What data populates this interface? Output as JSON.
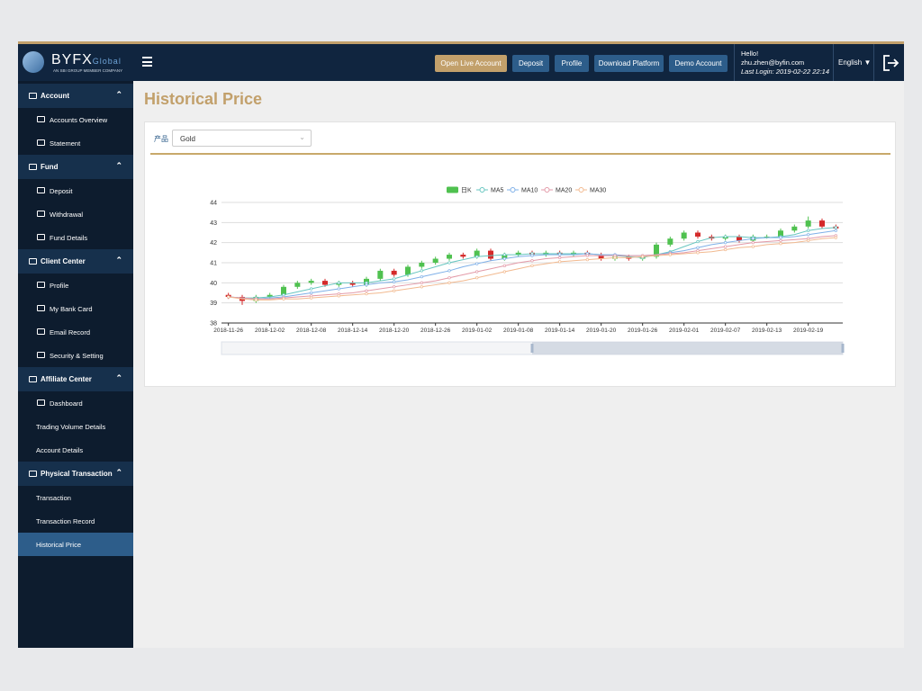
{
  "header": {
    "logo": "BYFX",
    "logo_suffix": "Global",
    "tagline": "AN SBI GROUP MEMBER COMPANY",
    "buttons": [
      "Open Live Account",
      "Deposit",
      "Profile",
      "Download Platform",
      "Demo Account"
    ],
    "greeting": "Hello!",
    "email": "zhu.zhen@byfin.com",
    "last_login": "Last Login: 2019-02-22 22:14",
    "language": "English"
  },
  "sidebar": {
    "sections": [
      {
        "title": "Account",
        "items": [
          "Accounts Overview",
          "Statement"
        ]
      },
      {
        "title": "Fund",
        "items": [
          "Deposit",
          "Withdrawal",
          "Fund Details"
        ]
      },
      {
        "title": "Client Center",
        "items": [
          "Profile",
          "My Bank Card",
          "Email Record",
          "Security & Setting"
        ]
      },
      {
        "title": "Affiliate Center",
        "items": [
          "Dashboard",
          "Trading Volume Details",
          "Account Details"
        ]
      },
      {
        "title": "Physical Transaction",
        "items": [
          "Transaction",
          "Transaction Record",
          "Historical Price"
        ]
      }
    ],
    "active_item": {
      "section": 4,
      "item": 2
    }
  },
  "page": {
    "title": "Historical Price",
    "filter_label": "产品",
    "filter_value": "Gold"
  },
  "chart_data": {
    "type": "candlestick",
    "categories": [
      "2018-11-26",
      null,
      null,
      "2018-12-02",
      null,
      null,
      "2018-12-08",
      null,
      null,
      "2018-12-14",
      null,
      null,
      "2018-12-20",
      null,
      null,
      "2018-12-26",
      null,
      null,
      "2019-01-02",
      null,
      null,
      "2019-01-08",
      null,
      null,
      "2019-01-14",
      null,
      null,
      "2019-01-20",
      null,
      null,
      "2019-01-26",
      null,
      null,
      "2019-02-01",
      null,
      null,
      "2019-02-07",
      null,
      null,
      "2019-02-13",
      null,
      null,
      "2019-02-19",
      null,
      null
    ],
    "candles": {
      "name": "日K",
      "up_color": "#4fc14f",
      "down_color": "#d42a2a",
      "open": [
        39.4,
        39.3,
        39.1,
        39.3,
        39.4,
        39.8,
        40.0,
        40.1,
        39.9,
        40.0,
        39.9,
        40.2,
        40.6,
        40.4,
        40.8,
        41.0,
        41.2,
        41.4,
        41.3,
        41.6,
        41.2,
        41.4,
        41.5,
        41.4,
        41.5,
        41.4,
        41.5,
        41.4,
        41.2,
        41.3,
        41.2,
        41.3,
        41.9,
        42.2,
        42.5,
        42.3,
        42.2,
        42.3,
        42.1,
        42.3,
        42.3,
        42.6,
        42.8,
        43.1,
        42.8
      ],
      "close": [
        39.3,
        39.1,
        39.3,
        39.4,
        39.8,
        40.0,
        40.1,
        39.9,
        40.0,
        39.9,
        40.2,
        40.6,
        40.4,
        40.8,
        41.0,
        41.2,
        41.4,
        41.3,
        41.6,
        41.2,
        41.4,
        41.5,
        41.4,
        41.5,
        41.4,
        41.5,
        41.4,
        41.2,
        41.3,
        41.2,
        41.3,
        41.9,
        42.2,
        42.5,
        42.3,
        42.2,
        42.3,
        42.1,
        42.3,
        42.3,
        42.6,
        42.8,
        43.1,
        42.8,
        42.7
      ],
      "low": [
        39.2,
        38.9,
        39.0,
        39.2,
        39.3,
        39.7,
        39.9,
        39.8,
        39.8,
        39.8,
        39.8,
        40.1,
        40.3,
        40.3,
        40.7,
        40.9,
        41.1,
        41.2,
        41.2,
        41.1,
        41.1,
        41.3,
        41.3,
        41.3,
        41.3,
        41.3,
        41.3,
        41.1,
        41.1,
        41.1,
        41.1,
        41.2,
        41.8,
        42.1,
        42.2,
        42.1,
        42.1,
        42.0,
        42.0,
        42.2,
        42.2,
        42.5,
        42.7,
        42.7,
        42.6
      ],
      "high": [
        39.5,
        39.4,
        39.4,
        39.5,
        39.9,
        40.1,
        40.2,
        40.2,
        40.1,
        40.1,
        40.3,
        40.7,
        40.7,
        40.9,
        41.1,
        41.3,
        41.5,
        41.5,
        41.7,
        41.7,
        41.5,
        41.6,
        41.6,
        41.6,
        41.6,
        41.6,
        41.6,
        41.5,
        41.4,
        41.4,
        41.4,
        42.0,
        42.3,
        42.6,
        42.6,
        42.4,
        42.4,
        42.4,
        42.4,
        42.4,
        42.7,
        42.9,
        43.3,
        43.2,
        42.9
      ]
    },
    "series": [
      {
        "name": "MA5",
        "color": "#67c6c0",
        "values": [
          39.3,
          39.25,
          39.25,
          39.3,
          39.4,
          39.55,
          39.7,
          39.85,
          40.0,
          40.0,
          40.0,
          40.1,
          40.2,
          40.4,
          40.6,
          40.8,
          41.0,
          41.15,
          41.3,
          41.35,
          41.4,
          41.4,
          41.45,
          41.45,
          41.45,
          41.45,
          41.45,
          41.4,
          41.35,
          41.3,
          41.25,
          41.4,
          41.55,
          41.8,
          42.05,
          42.25,
          42.3,
          42.3,
          42.25,
          42.25,
          42.3,
          42.4,
          42.6,
          42.7,
          42.75
        ]
      },
      {
        "name": "MA10",
        "color": "#7fb0e8",
        "values": [
          39.3,
          39.25,
          39.2,
          39.25,
          39.3,
          39.4,
          39.5,
          39.6,
          39.7,
          39.8,
          39.9,
          40.0,
          40.05,
          40.15,
          40.3,
          40.45,
          40.6,
          40.8,
          40.95,
          41.1,
          41.2,
          41.3,
          41.35,
          41.4,
          41.4,
          41.4,
          41.45,
          41.4,
          41.4,
          41.35,
          41.35,
          41.4,
          41.5,
          41.6,
          41.75,
          41.9,
          42.0,
          42.1,
          42.2,
          42.25,
          42.25,
          42.3,
          42.4,
          42.5,
          42.6
        ]
      },
      {
        "name": "MA20",
        "color": "#e39aa8",
        "values": [
          39.3,
          39.25,
          39.2,
          39.2,
          39.25,
          39.3,
          39.35,
          39.4,
          39.45,
          39.5,
          39.6,
          39.7,
          39.8,
          39.9,
          40.0,
          40.1,
          40.25,
          40.4,
          40.55,
          40.7,
          40.85,
          41.0,
          41.1,
          41.2,
          41.25,
          41.3,
          41.35,
          41.35,
          41.35,
          41.35,
          41.35,
          41.4,
          41.45,
          41.5,
          41.6,
          41.7,
          41.8,
          41.9,
          42.0,
          42.05,
          42.1,
          42.15,
          42.2,
          42.3,
          42.35
        ]
      },
      {
        "name": "MA30",
        "color": "#f2b98f",
        "values": [
          39.3,
          39.2,
          39.15,
          39.15,
          39.2,
          39.2,
          39.25,
          39.3,
          39.35,
          39.4,
          39.45,
          39.5,
          39.6,
          39.7,
          39.8,
          39.9,
          40.0,
          40.1,
          40.25,
          40.4,
          40.55,
          40.7,
          40.85,
          40.95,
          41.05,
          41.1,
          41.15,
          41.2,
          41.25,
          41.25,
          41.3,
          41.35,
          41.4,
          41.45,
          41.5,
          41.55,
          41.65,
          41.75,
          41.8,
          41.9,
          41.95,
          42.0,
          42.1,
          42.2,
          42.25
        ]
      }
    ],
    "ylim": [
      38,
      44
    ],
    "yticks": [
      38,
      39,
      40,
      41,
      42,
      43,
      44
    ],
    "grid": true,
    "legend": "top"
  }
}
